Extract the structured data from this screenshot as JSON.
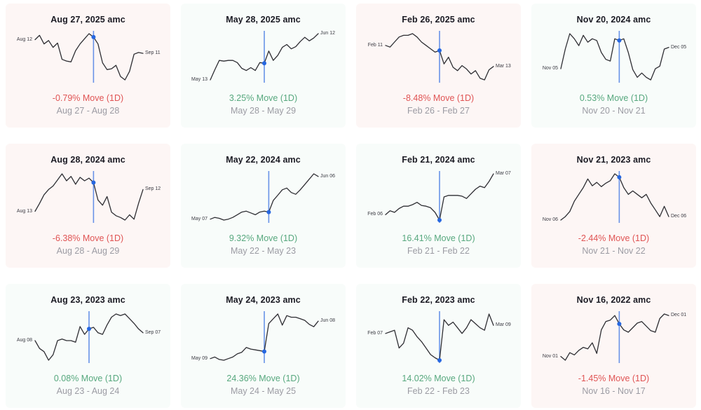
{
  "colors": {
    "negative_card_bg": "#fdf6f5",
    "positive_card_bg": "#f8fcfa",
    "negative_move_text": "#e05454",
    "positive_move_text": "#57a87e",
    "range_text": "#9b9ba3",
    "title_text": "#1b1b24",
    "sparkline": "#2e2e33",
    "marker_line": "#5c8ae6",
    "marker_dot": "#2667e0"
  },
  "chart_data": [
    {
      "type": "line",
      "title": "Aug 27, 2025 amc",
      "start_label": "Aug 12",
      "end_label": "Sep 11",
      "move_label": "-0.79% Move (1D)",
      "direction": "down",
      "range_label": "Aug 27 - Aug 28",
      "marker_index": 13,
      "values": [
        75,
        80,
        70,
        74,
        66,
        71,
        52,
        50,
        49,
        62,
        70,
        76,
        82,
        78,
        70,
        48,
        40,
        41,
        45,
        32,
        28,
        38,
        58,
        60,
        59
      ]
    },
    {
      "type": "line",
      "title": "May 28, 2025 amc",
      "start_label": "May 13",
      "end_label": "Jun 12",
      "move_label": "3.25% Move (1D)",
      "direction": "up",
      "range_label": "May 28 - May 29",
      "marker_index": 12,
      "values": [
        18,
        32,
        45,
        44,
        45,
        45,
        42,
        34,
        31,
        35,
        31,
        42,
        41,
        58,
        45,
        52,
        63,
        67,
        61,
        64,
        71,
        77,
        72,
        76,
        82
      ]
    },
    {
      "type": "line",
      "title": "Feb 26, 2025 amc",
      "start_label": "Feb 11",
      "end_label": "Mar 13",
      "move_label": "-8.48% Move (1D)",
      "direction": "down",
      "range_label": "Feb 26 - Feb 27",
      "marker_index": 12,
      "values": [
        70,
        68,
        74,
        80,
        82,
        82,
        84,
        80,
        74,
        70,
        66,
        62,
        64,
        48,
        56,
        44,
        40,
        46,
        42,
        36,
        40,
        31,
        29,
        41,
        45
      ]
    },
    {
      "type": "line",
      "title": "Nov 20, 2024 amc",
      "start_label": "Nov 05",
      "end_label": "Dec 05",
      "move_label": "0.53% Move (1D)",
      "direction": "up",
      "range_label": "Nov 20 - Nov 21",
      "marker_index": 13,
      "values": [
        35,
        58,
        76,
        70,
        62,
        74,
        66,
        70,
        68,
        54,
        46,
        44,
        70,
        68,
        70,
        54,
        34,
        25,
        30,
        25,
        22,
        35,
        38,
        58,
        60
      ]
    },
    {
      "type": "line",
      "title": "Aug 28, 2024 amc",
      "start_label": "Aug 13",
      "end_label": "Sep 12",
      "move_label": "-6.38% Move (1D)",
      "direction": "down",
      "range_label": "Aug 28 - Aug 29",
      "marker_index": 13,
      "values": [
        35,
        44,
        54,
        60,
        64,
        71,
        78,
        70,
        75,
        66,
        74,
        70,
        73,
        68,
        48,
        42,
        52,
        34,
        30,
        28,
        25,
        31,
        26,
        44,
        60
      ]
    },
    {
      "type": "line",
      "title": "May 22, 2024 amc",
      "start_label": "May 07",
      "end_label": "Jun 06",
      "move_label": "9.32% Move (1D)",
      "direction": "up",
      "range_label": "May 22 - May 23",
      "marker_index": 13,
      "values": [
        25,
        27,
        26,
        24,
        25,
        27,
        30,
        33,
        34,
        32,
        30,
        33,
        34,
        33,
        46,
        52,
        58,
        60,
        55,
        53,
        58,
        64,
        70,
        76,
        73
      ]
    },
    {
      "type": "line",
      "title": "Feb 21, 2024 amc",
      "start_label": "Feb 06",
      "end_label": "Mar 07",
      "move_label": "16.41% Move (1D)",
      "direction": "up",
      "range_label": "Feb 21 - Feb 22",
      "marker_index": 12,
      "values": [
        25,
        30,
        28,
        33,
        36,
        36,
        38,
        41,
        37,
        36,
        34,
        28,
        18,
        48,
        50,
        50,
        50,
        49,
        46,
        52,
        58,
        62,
        60,
        68,
        78
      ]
    },
    {
      "type": "line",
      "title": "Nov 21, 2023 amc",
      "start_label": "Nov 06",
      "end_label": "Dec 06",
      "move_label": "-2.44% Move (1D)",
      "direction": "down",
      "range_label": "Nov 21 - Nov 22",
      "marker_index": 13,
      "values": [
        20,
        24,
        30,
        42,
        50,
        58,
        68,
        60,
        64,
        59,
        63,
        66,
        74,
        70,
        58,
        50,
        54,
        50,
        46,
        50,
        40,
        32,
        24,
        36,
        24
      ]
    },
    {
      "type": "line",
      "title": "Aug 23, 2023 amc",
      "start_label": "Aug 08",
      "end_label": "Sep 07",
      "move_label": "0.08% Move (1D)",
      "direction": "up",
      "range_label": "Aug 23 - Aug 24",
      "marker_index": 12,
      "values": [
        40,
        30,
        26,
        15,
        22,
        40,
        42,
        40,
        40,
        38,
        58,
        48,
        55,
        57,
        50,
        48,
        60,
        70,
        74,
        72,
        74,
        68,
        62,
        55,
        50
      ]
    },
    {
      "type": "line",
      "title": "May 24, 2023 amc",
      "start_label": "May 09",
      "end_label": "Jun 08",
      "move_label": "24.36% Move (1D)",
      "direction": "up",
      "range_label": "May 24 - May 25",
      "marker_index": 12,
      "values": [
        18,
        20,
        17,
        16,
        18,
        20,
        24,
        26,
        32,
        30,
        29,
        28,
        27,
        62,
        68,
        74,
        60,
        72,
        70,
        70,
        68,
        66,
        61,
        58,
        65
      ]
    },
    {
      "type": "line",
      "title": "Feb 22, 2023 amc",
      "start_label": "Feb 07",
      "end_label": "Mar 09",
      "move_label": "14.02% Move (1D)",
      "direction": "up",
      "range_label": "Feb 22 - Feb 23",
      "marker_index": 12,
      "values": [
        48,
        50,
        52,
        30,
        36,
        55,
        52,
        44,
        38,
        30,
        22,
        18,
        15,
        65,
        58,
        62,
        55,
        48,
        55,
        65,
        60,
        55,
        52,
        72,
        58
      ]
    },
    {
      "type": "line",
      "title": "Nov 16, 2022 amc",
      "start_label": "Nov 01",
      "end_label": "Dec 01",
      "move_label": "-1.45% Move (1D)",
      "direction": "down",
      "range_label": "Nov 16 - Nov 17",
      "marker_index": 13,
      "values": [
        20,
        15,
        25,
        22,
        28,
        32,
        30,
        38,
        24,
        55,
        66,
        68,
        74,
        63,
        55,
        52,
        58,
        64,
        66,
        60,
        54,
        52,
        70,
        76,
        74
      ]
    }
  ]
}
